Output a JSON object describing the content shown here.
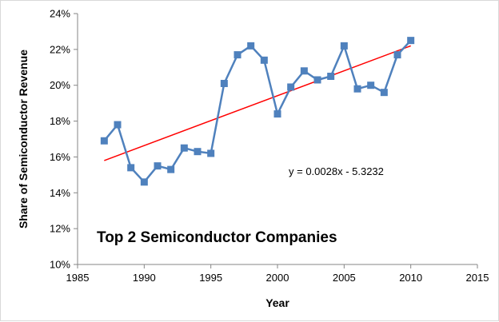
{
  "chart_data": {
    "type": "line",
    "xlabel": "Year",
    "ylabel": "Share of Semiconductor Revenue",
    "xlim": [
      1985,
      2015
    ],
    "ylim": [
      0.1,
      0.24
    ],
    "x_ticks": [
      1985,
      1990,
      1995,
      2000,
      2005,
      2010,
      2015
    ],
    "y_ticks": [
      0.1,
      0.12,
      0.14,
      0.16,
      0.18,
      0.2,
      0.22,
      0.24
    ],
    "x_tick_labels": [
      "1985",
      "1990",
      "1995",
      "2000",
      "2005",
      "2010",
      "2015"
    ],
    "y_tick_labels": [
      "10%",
      "12%",
      "14%",
      "16%",
      "18%",
      "20%",
      "22%",
      "24%"
    ],
    "grid": false,
    "annotations": {
      "title": "Top 2 Semiconductor Companies",
      "equation": "y = 0.0028x - 5.3232"
    },
    "series": [
      {
        "color": "#4f81bd",
        "marker": "square",
        "x": [
          1987,
          1988,
          1989,
          1990,
          1991,
          1992,
          1993,
          1994,
          1995,
          1996,
          1997,
          1998,
          1999,
          2000,
          2001,
          2002,
          2003,
          2004,
          2005,
          2006,
          2007,
          2008,
          2009,
          2010
        ],
        "y": [
          0.169,
          0.178,
          0.154,
          0.146,
          0.155,
          0.153,
          0.165,
          0.163,
          0.162,
          0.201,
          0.217,
          0.222,
          0.214,
          0.184,
          0.199,
          0.208,
          0.203,
          0.205,
          0.222,
          0.198,
          0.2,
          0.196,
          0.217,
          0.225
        ]
      }
    ],
    "trendline": {
      "color": "#ff0000",
      "slope": 0.0028,
      "intercept": -5.3232,
      "x": [
        1987,
        2010
      ],
      "y": [
        0.158,
        0.222
      ]
    }
  }
}
